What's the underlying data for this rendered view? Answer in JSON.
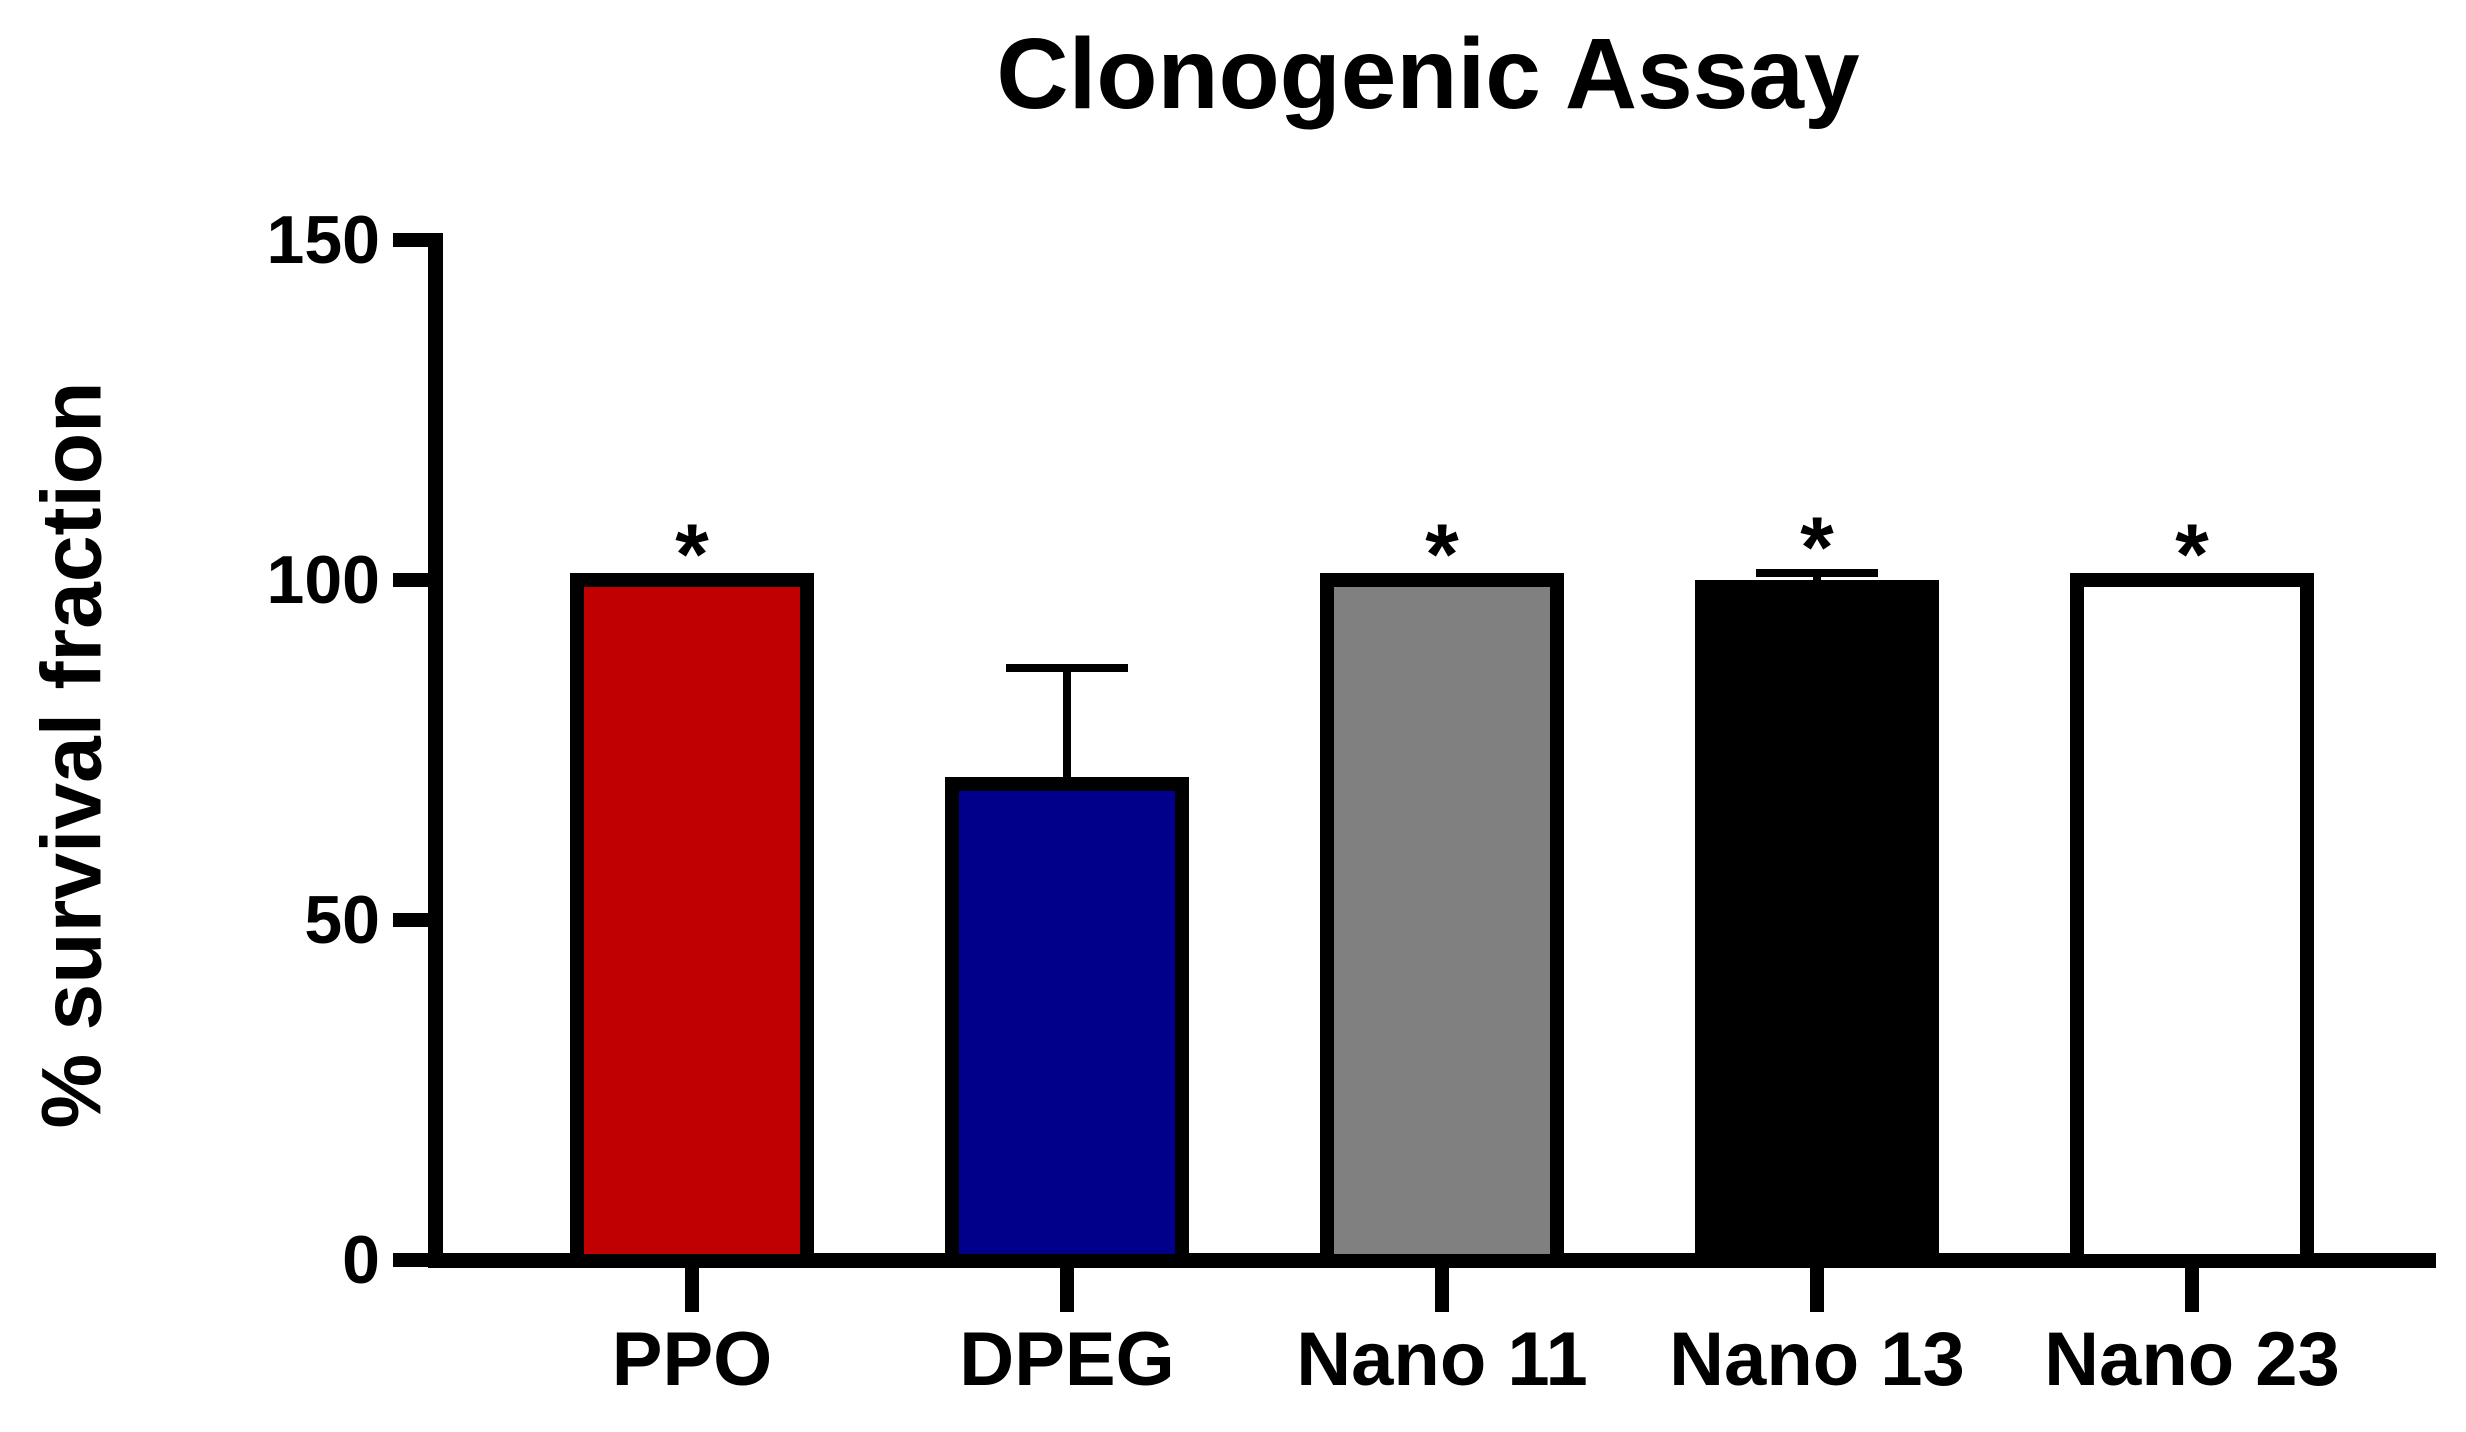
{
  "chart_data": {
    "type": "bar",
    "title": "Clonogenic Assay",
    "xlabel": "",
    "ylabel": "% survival fraction",
    "ylim": [
      0,
      150
    ],
    "yticks": [
      0,
      50,
      100,
      150
    ],
    "grid": false,
    "legend": false,
    "categories": [
      "PPO",
      "DPEG",
      "Nano 11",
      "Nano 13",
      "Nano 23"
    ],
    "values": [
      100,
      70,
      100,
      99,
      100
    ],
    "errors_plus": [
      0,
      17,
      0,
      2,
      0
    ],
    "error_style": "upper-cap",
    "significance": [
      "*",
      "",
      "*",
      "*",
      "*"
    ],
    "bar_fill_colors": [
      "#C00000",
      "#00008B",
      "#808080",
      "#000000",
      "#FFFFFF"
    ],
    "bar_border_color": "#000000",
    "axis_color": "#000000",
    "background_color": "#FFFFFF"
  }
}
